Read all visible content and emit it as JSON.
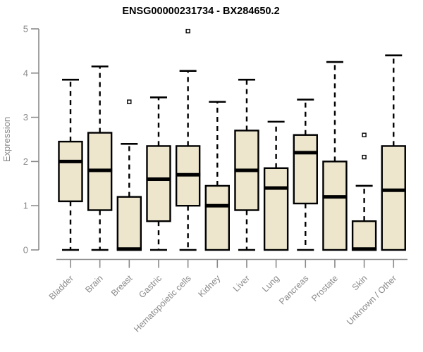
{
  "chart_data": {
    "type": "boxplot",
    "title": "ENSG00000231734 - BX284650.2",
    "xlabel": "",
    "ylabel": "Expression",
    "ylim": [
      0,
      5
    ],
    "yticks": [
      0,
      1,
      2,
      3,
      4,
      5
    ],
    "grid": false,
    "legend": "none",
    "categories": [
      "Bladder",
      "Brain",
      "Breast",
      "Gastric",
      "Hematopoietic cells",
      "Kidney",
      "Liver",
      "Lung",
      "Pancreas",
      "Prostate",
      "Skin",
      "Unknown / Other"
    ],
    "boxes": [
      {
        "name": "Bladder",
        "whisker_low": 0,
        "q1": 1.1,
        "median": 2.0,
        "q3": 2.45,
        "whisker_high": 3.85,
        "outliers": []
      },
      {
        "name": "Brain",
        "whisker_low": 0,
        "q1": 0.9,
        "median": 1.8,
        "q3": 2.65,
        "whisker_high": 4.15,
        "outliers": []
      },
      {
        "name": "Breast",
        "whisker_low": 0,
        "q1": 0.0,
        "median": 0.02,
        "q3": 1.2,
        "whisker_high": 2.4,
        "outliers": [
          3.35
        ]
      },
      {
        "name": "Gastric",
        "whisker_low": 0,
        "q1": 0.65,
        "median": 1.6,
        "q3": 2.35,
        "whisker_high": 3.45,
        "outliers": []
      },
      {
        "name": "Hematopoietic cells",
        "whisker_low": 0,
        "q1": 1.0,
        "median": 1.7,
        "q3": 2.35,
        "whisker_high": 4.05,
        "outliers": [
          4.95
        ]
      },
      {
        "name": "Kidney",
        "whisker_low": 0,
        "q1": 0.0,
        "median": 1.0,
        "q3": 1.45,
        "whisker_high": 3.35,
        "outliers": []
      },
      {
        "name": "Liver",
        "whisker_low": 0,
        "q1": 0.9,
        "median": 1.8,
        "q3": 2.7,
        "whisker_high": 3.85,
        "outliers": []
      },
      {
        "name": "Lung",
        "whisker_low": 0,
        "q1": 0.0,
        "median": 1.4,
        "q3": 1.85,
        "whisker_high": 2.9,
        "outliers": []
      },
      {
        "name": "Pancreas",
        "whisker_low": 0,
        "q1": 1.05,
        "median": 2.2,
        "q3": 2.6,
        "whisker_high": 3.4,
        "outliers": []
      },
      {
        "name": "Prostate",
        "whisker_low": 0,
        "q1": 0.0,
        "median": 1.2,
        "q3": 2.0,
        "whisker_high": 4.25,
        "outliers": []
      },
      {
        "name": "Skin",
        "whisker_low": 0,
        "q1": 0.0,
        "median": 0.02,
        "q3": 0.65,
        "whisker_high": 1.45,
        "outliers": [
          2.6,
          2.1
        ]
      },
      {
        "name": "Unknown / Other",
        "whisker_low": 0,
        "q1": 0.0,
        "median": 1.35,
        "q3": 2.35,
        "whisker_high": 4.4,
        "outliers": []
      }
    ],
    "colors": {
      "box_fill": "#EDE6CC",
      "box_stroke": "#000000",
      "median": "#000000",
      "whisker": "#000000",
      "outlier_fill": "#ffffff",
      "outlier_stroke": "#000000",
      "axis": "#8a8a8a",
      "tick_text": "#8a8a8a",
      "title": "#000000",
      "background": "#ffffff"
    }
  }
}
